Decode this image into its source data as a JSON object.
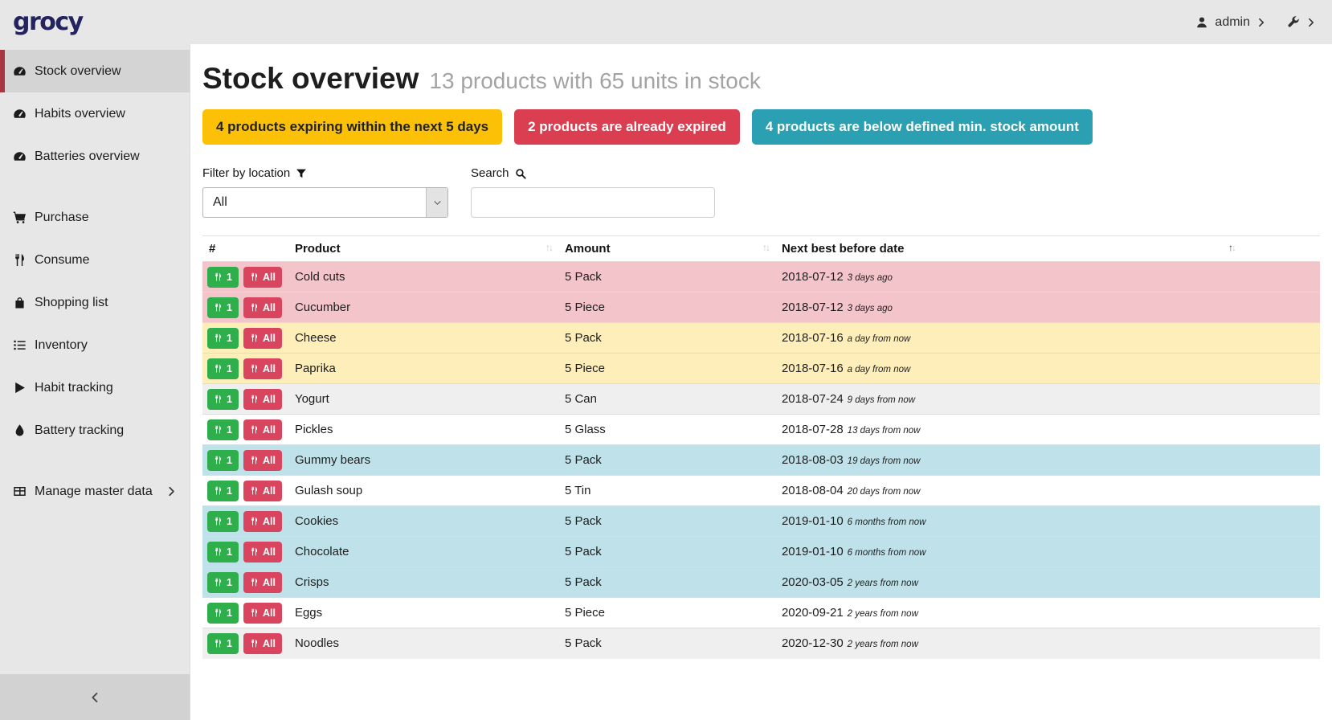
{
  "navbar": {
    "logo": "grocy",
    "user_label": "admin"
  },
  "sidebar": {
    "items": [
      {
        "label": "Stock overview",
        "icon": "tachometer-icon",
        "group": 1,
        "active": true
      },
      {
        "label": "Habits overview",
        "icon": "tachometer-icon",
        "group": 1
      },
      {
        "label": "Batteries overview",
        "icon": "tachometer-icon",
        "group": 1
      },
      {
        "label": "Purchase",
        "icon": "cart-icon",
        "group": 2
      },
      {
        "label": "Consume",
        "icon": "utensils-icon",
        "group": 2
      },
      {
        "label": "Shopping list",
        "icon": "bag-icon",
        "group": 2
      },
      {
        "label": "Inventory",
        "icon": "list-icon",
        "group": 2
      },
      {
        "label": "Habit tracking",
        "icon": "play-icon",
        "group": 2
      },
      {
        "label": "Battery tracking",
        "icon": "droplet-icon",
        "group": 2
      },
      {
        "label": "Manage master data",
        "icon": "table-icon",
        "group": 3,
        "has_chevron": true
      }
    ]
  },
  "header": {
    "title": "Stock overview",
    "subtitle": "13 products with 65 units in stock"
  },
  "alerts": [
    {
      "text": "4 products expiring within the next 5 days",
      "variant": "warning",
      "color": "#fcc107"
    },
    {
      "text": "2 products are already expired",
      "variant": "danger",
      "color": "#dc3e51"
    },
    {
      "text": "4 products are below defined min. stock amount",
      "variant": "info",
      "color": "#2aa0b2"
    }
  ],
  "filters": {
    "location_label": "Filter by location",
    "location_value": "All",
    "search_label": "Search",
    "search_value": ""
  },
  "table": {
    "columns": [
      "#",
      "Product",
      "Amount",
      "Next best before date"
    ],
    "consume_one_label": "1",
    "consume_all_label": "All",
    "sort_asc_char": "↑",
    "sort_desc_char": "↓",
    "rows": [
      {
        "product": "Cold cuts",
        "amount": "5 Pack",
        "date": "2018-07-12",
        "relative": "3 days ago",
        "variant": "danger"
      },
      {
        "product": "Cucumber",
        "amount": "5 Piece",
        "date": "2018-07-12",
        "relative": "3 days ago",
        "variant": "danger"
      },
      {
        "product": "Cheese",
        "amount": "5 Pack",
        "date": "2018-07-16",
        "relative": "a day from now",
        "variant": "warning"
      },
      {
        "product": "Paprika",
        "amount": "5 Piece",
        "date": "2018-07-16",
        "relative": "a day from now",
        "variant": "warning"
      },
      {
        "product": "Yogurt",
        "amount": "5 Can",
        "date": "2018-07-24",
        "relative": "9 days from now",
        "variant": "stripe"
      },
      {
        "product": "Pickles",
        "amount": "5 Glass",
        "date": "2018-07-28",
        "relative": "13 days from now",
        "variant": "plain"
      },
      {
        "product": "Gummy bears",
        "amount": "5 Pack",
        "date": "2018-08-03",
        "relative": "19 days from now",
        "variant": "info"
      },
      {
        "product": "Gulash soup",
        "amount": "5 Tin",
        "date": "2018-08-04",
        "relative": "20 days from now",
        "variant": "plain"
      },
      {
        "product": "Cookies",
        "amount": "5 Pack",
        "date": "2019-01-10",
        "relative": "6 months from now",
        "variant": "info"
      },
      {
        "product": "Chocolate",
        "amount": "5 Pack",
        "date": "2019-01-10",
        "relative": "6 months from now",
        "variant": "info"
      },
      {
        "product": "Crisps",
        "amount": "5 Pack",
        "date": "2020-03-05",
        "relative": "2 years from now",
        "variant": "info"
      },
      {
        "product": "Eggs",
        "amount": "5 Piece",
        "date": "2020-09-21",
        "relative": "2 years from now",
        "variant": "plain"
      },
      {
        "product": "Noodles",
        "amount": "5 Pack",
        "date": "2020-12-30",
        "relative": "2 years from now",
        "variant": "stripe"
      }
    ]
  },
  "colors": {
    "accent_red": "#a93542",
    "success_button": "#2fae4c",
    "danger_button": "#d9455e",
    "row_danger": "#f4c4cb",
    "row_warning": "#feeeba",
    "row_info": "#bfe2ea"
  }
}
